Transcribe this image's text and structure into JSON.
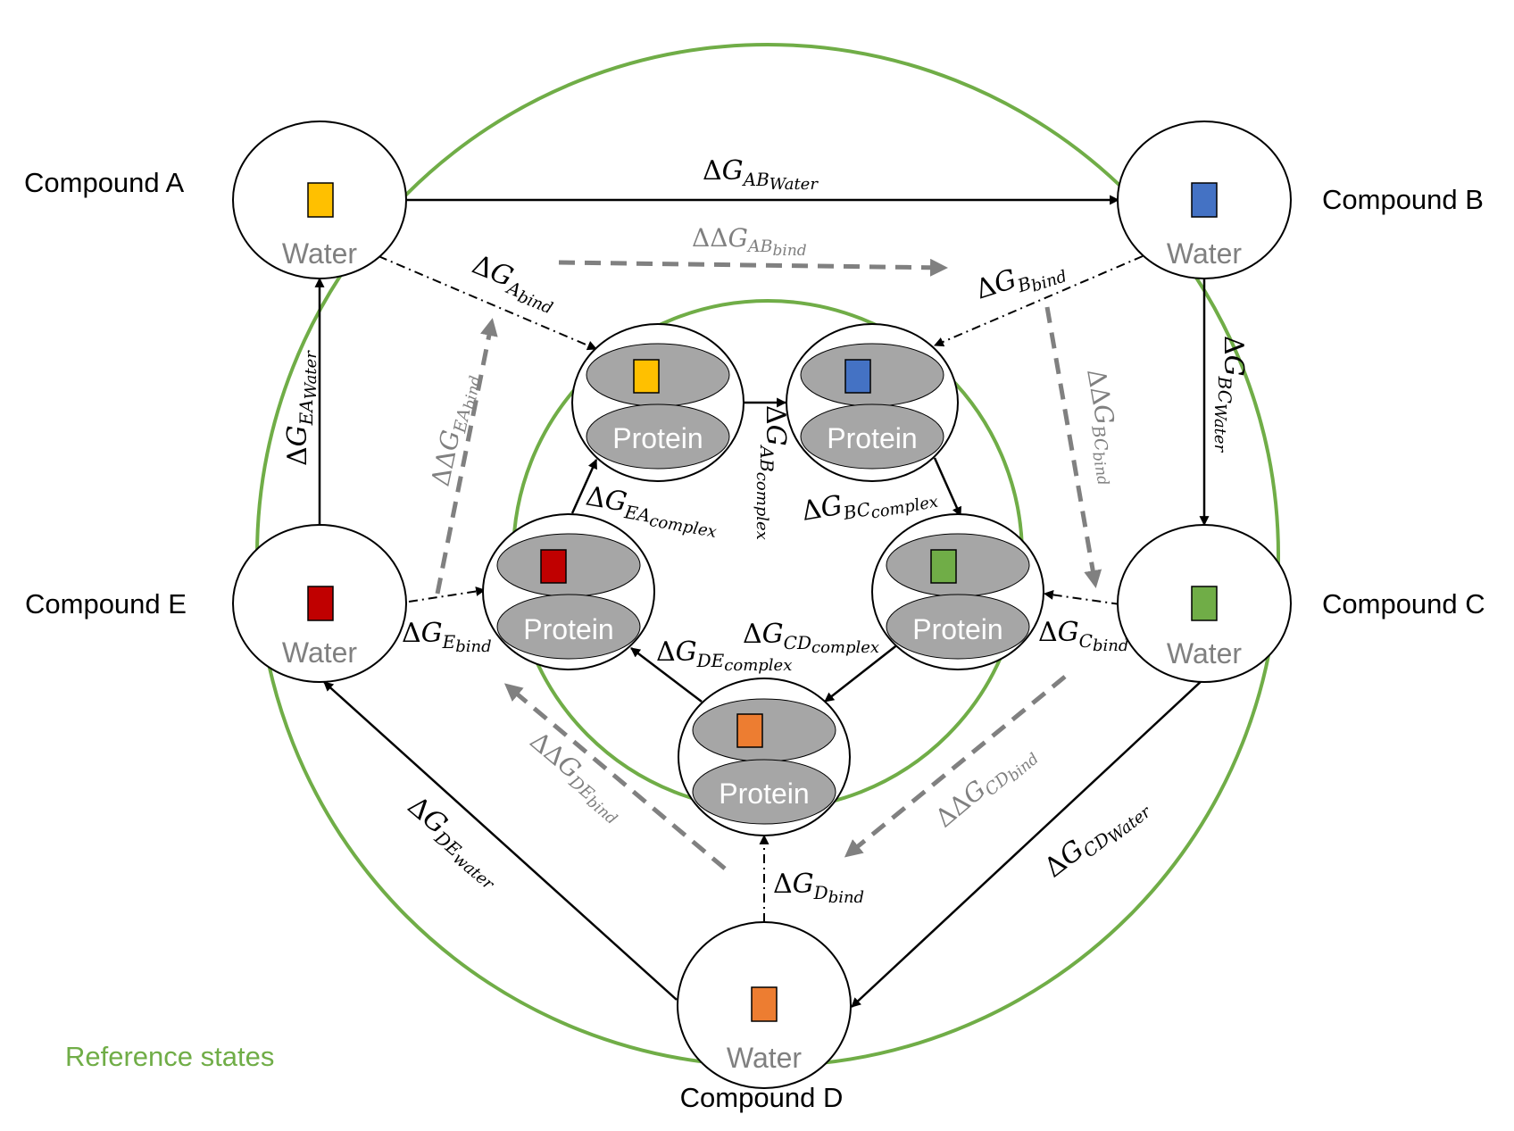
{
  "colors": {
    "reference_ring": "#70ad47",
    "ligand_A": "#ffc000",
    "ligand_B": "#4472c4",
    "ligand_C": "#70ad47",
    "ligand_D": "#ed7d31",
    "ligand_E": "#c00000",
    "protein_fill": "#a6a6a6",
    "ddg_arrow": "#808080",
    "water_text": "#808080"
  },
  "compounds": {
    "A": "Compound A",
    "B": "Compound B",
    "C": "Compound C",
    "D": "Compound D",
    "E": "Compound E"
  },
  "states": {
    "water": "Water",
    "protein": "Protein"
  },
  "reference_states_label": "Reference states",
  "symbols": {
    "delta": "Δ",
    "ddelta": "ΔΔ",
    "G": "G"
  },
  "labels": {
    "ab_water": {
      "main": "AB",
      "sub": "Water"
    },
    "bc_water": {
      "main": "BC",
      "sub": "Water"
    },
    "cd_water": {
      "main": "CD",
      "sub": "Water"
    },
    "de_water": {
      "main": "DE",
      "sub": "water"
    },
    "ea_water": {
      "main": "EA",
      "sub": "Water"
    },
    "a_bind": {
      "main": "A",
      "sub": "bind"
    },
    "b_bind": {
      "main": "B",
      "sub": "bind"
    },
    "c_bind": {
      "main": "C",
      "sub": "bind"
    },
    "d_bind": {
      "main": "D",
      "sub": "bind"
    },
    "e_bind": {
      "main": "E",
      "sub": "bind"
    },
    "ab_complex": {
      "main": "AB",
      "sub": "complex"
    },
    "bc_complex": {
      "main": "BC",
      "sub": "complex"
    },
    "cd_complex": {
      "main": "CD",
      "sub": "complex"
    },
    "de_complex": {
      "main": "DE",
      "sub": "complex"
    },
    "ea_complex": {
      "main": "EA",
      "sub": "complex"
    },
    "ab_ddg": {
      "main": "AB",
      "sub": "bind"
    },
    "bc_ddg": {
      "main": "BC",
      "sub": "bind"
    },
    "cd_ddg": {
      "main": "CD",
      "sub": "bind"
    },
    "de_ddg": {
      "main": "DE",
      "sub": "bind"
    },
    "ea_ddg": {
      "main": "EA",
      "sub": "bind"
    }
  }
}
